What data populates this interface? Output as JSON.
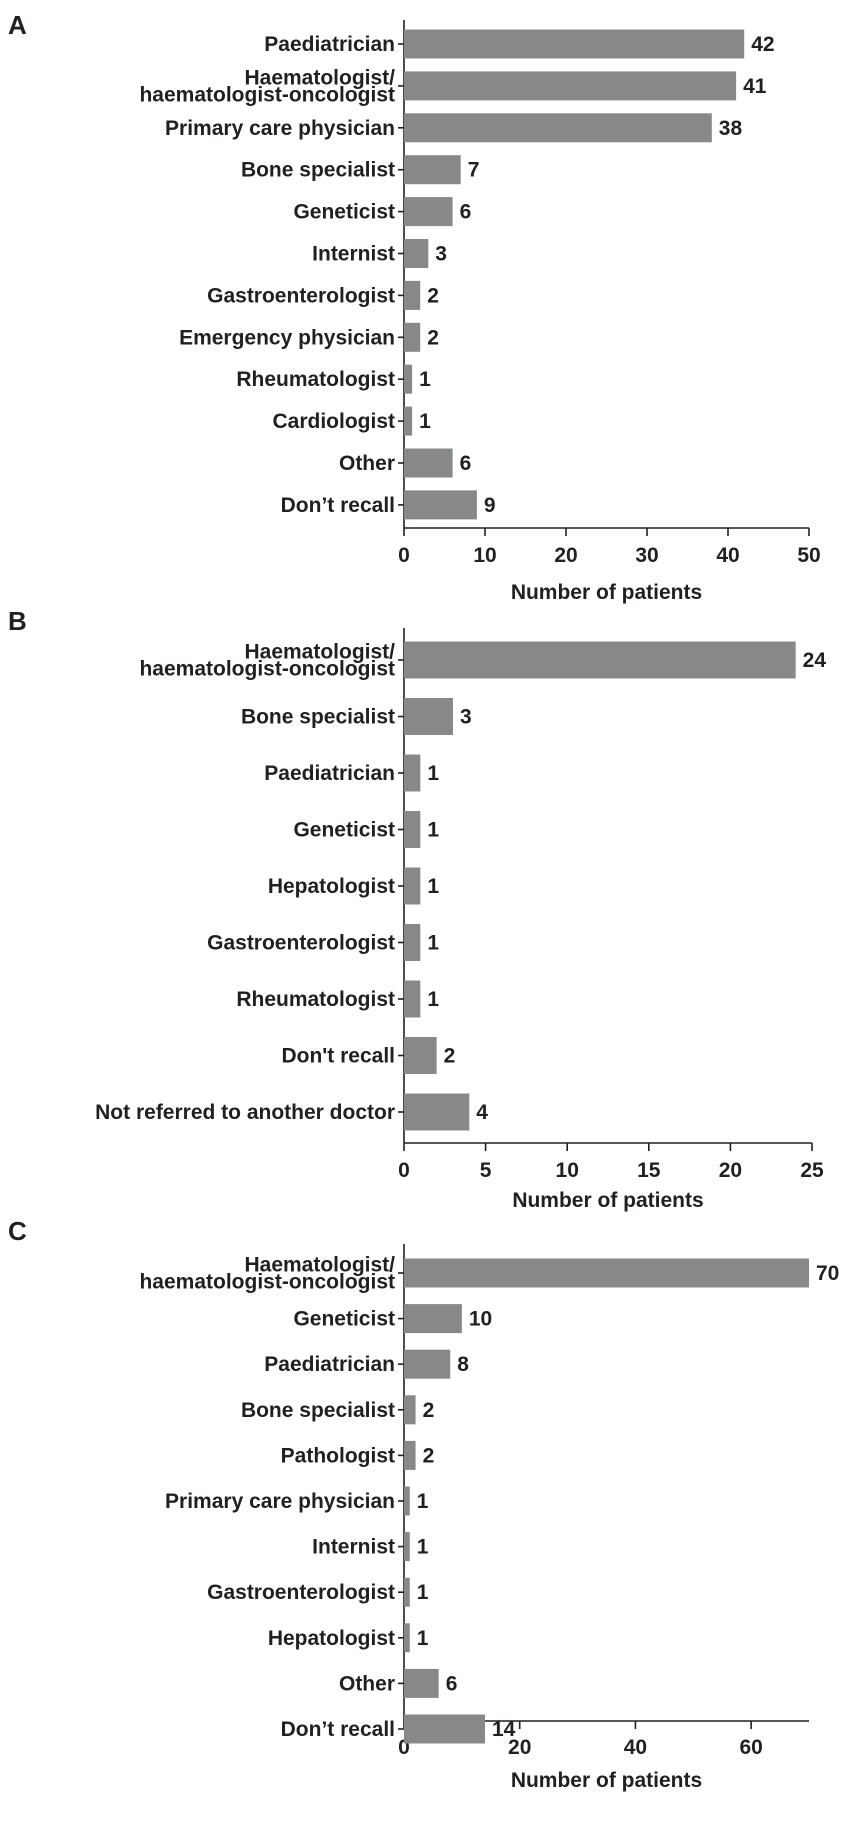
{
  "colors": {
    "bar": "#87888a",
    "text": "#231f20"
  },
  "chart_data": [
    {
      "type": "bar",
      "orientation": "horizontal",
      "panel": "A",
      "categories": [
        [
          "Paediatrician"
        ],
        [
          "Haematologist/",
          "haematologist-oncologist"
        ],
        [
          "Primary care physician"
        ],
        [
          "Bone specialist"
        ],
        [
          "Geneticist"
        ],
        [
          "Internist"
        ],
        [
          "Gastroenterologist"
        ],
        [
          "Emergency physician"
        ],
        [
          "Rheumatologist"
        ],
        [
          "Cardiologist"
        ],
        [
          "Other"
        ],
        [
          "Don’t recall"
        ]
      ],
      "values": [
        42,
        41,
        38,
        7,
        6,
        3,
        2,
        2,
        1,
        1,
        6,
        9
      ],
      "value_labels": [
        "42",
        "41",
        "38",
        "7",
        "6",
        "3",
        "2",
        "2",
        "1",
        "1",
        "6",
        "9"
      ],
      "xlabel": "Number of patients",
      "xlim": [
        0,
        50
      ],
      "xticks": [
        0,
        10,
        20,
        30,
        40,
        50
      ],
      "xtick_labels": [
        "0",
        "10",
        "20",
        "30",
        "40",
        "50"
      ],
      "grid": false,
      "legend": "none"
    },
    {
      "type": "bar",
      "orientation": "horizontal",
      "panel": "B",
      "categories": [
        [
          "Haematologist/",
          "haematologist-oncologist"
        ],
        [
          "Bone specialist"
        ],
        [
          "Paediatrician"
        ],
        [
          "Geneticist"
        ],
        [
          "Hepatologist"
        ],
        [
          "Gastroenterologist"
        ],
        [
          "Rheumatologist"
        ],
        [
          "Don't recall"
        ],
        [
          "Not referred to another doctor"
        ]
      ],
      "values": [
        24,
        3,
        1,
        1,
        1,
        1,
        1,
        2,
        4
      ],
      "value_labels": [
        "24",
        "3",
        "1",
        "1",
        "1",
        "1",
        "1",
        "2",
        "4"
      ],
      "xlabel": "Number of patients",
      "xlim": [
        0,
        25
      ],
      "xticks": [
        0,
        5,
        10,
        15,
        20,
        25
      ],
      "xtick_labels": [
        "0",
        "5",
        "10",
        "15",
        "20",
        "25"
      ],
      "grid": false,
      "legend": "none"
    },
    {
      "type": "bar",
      "orientation": "horizontal",
      "panel": "C",
      "categories": [
        [
          "Haematologist/",
          "haematologist-oncologist"
        ],
        [
          "Geneticist"
        ],
        [
          "Paediatrician"
        ],
        [
          "Bone specialist"
        ],
        [
          "Pathologist"
        ],
        [
          "Primary care physician"
        ],
        [
          "Internist"
        ],
        [
          "Gastroenterologist"
        ],
        [
          "Hepatologist"
        ],
        [
          "Other"
        ],
        [
          "Don’t recall"
        ]
      ],
      "values": [
        70,
        10,
        8,
        2,
        2,
        1,
        1,
        1,
        1,
        6,
        14
      ],
      "value_labels": [
        "70",
        "10",
        "8",
        "2",
        "2",
        "1",
        "1",
        "1",
        "1",
        "6",
        "14"
      ],
      "xlabel": "Number of patients",
      "xlim": [
        0,
        70
      ],
      "xticks": [
        0,
        20,
        40,
        60
      ],
      "xtick_labels": [
        "0",
        "20",
        "40",
        "60"
      ],
      "grid": false,
      "legend": "none"
    }
  ]
}
